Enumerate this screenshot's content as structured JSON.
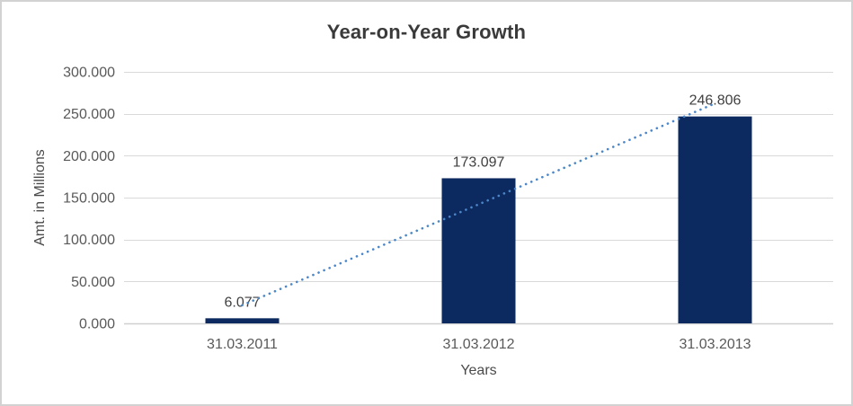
{
  "chart_data": {
    "type": "bar",
    "title": "Year-on-Year Growth",
    "xlabel": "Years",
    "ylabel": "Amt. in Millions",
    "categories": [
      "31.03.2011",
      "31.03.2012",
      "31.03.2013"
    ],
    "values": [
      6.077,
      173.097,
      246.806
    ],
    "value_labels": [
      "6.077",
      "173.097",
      "246.806"
    ],
    "ylim": [
      0,
      300
    ],
    "ytick_step": 50,
    "ytick_labels": [
      "0.000",
      "50.000",
      "100.000",
      "150.000",
      "200.000",
      "250.000",
      "300.000"
    ],
    "grid": true,
    "legend": false,
    "trendline": {
      "type": "linear",
      "style": "dotted"
    },
    "colors": {
      "bar": "#0c2a60",
      "trendline": "#4a86c8",
      "gridline": "#d9d9d9",
      "axis_line": "#d0d0d0",
      "title_text": "#3a3a3a",
      "tick_text": "#595959",
      "data_label_text": "#404040",
      "axis_title_text": "#4a4a4a",
      "border": "#d2d2d2",
      "background": "#ffffff"
    }
  }
}
